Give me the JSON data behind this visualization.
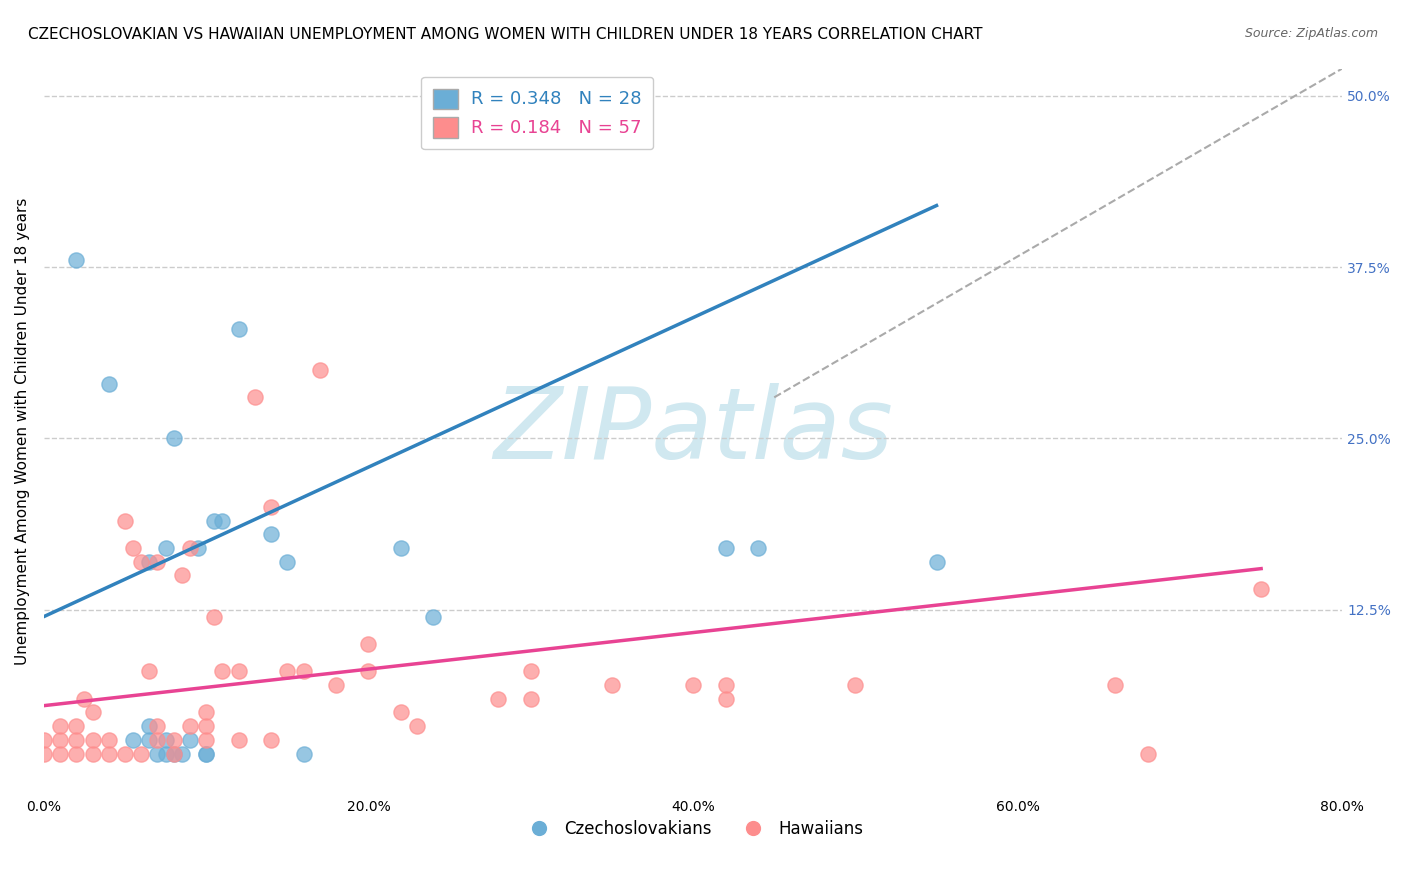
{
  "title": "CZECHOSLOVAKIAN VS HAWAIIAN UNEMPLOYMENT AMONG WOMEN WITH CHILDREN UNDER 18 YEARS CORRELATION CHART",
  "source": "Source: ZipAtlas.com",
  "xlabel": "",
  "ylabel": "Unemployment Among Women with Children Under 18 years",
  "xlim": [
    0.0,
    0.8
  ],
  "ylim": [
    -0.01,
    0.52
  ],
  "xtick_labels": [
    "0.0%",
    "20.0%",
    "40.0%",
    "60.0%",
    "80.0%"
  ],
  "xtick_vals": [
    0.0,
    0.2,
    0.4,
    0.6,
    0.8
  ],
  "ytick_right_labels": [
    "12.5%",
    "25.0%",
    "37.5%",
    "50.0%"
  ],
  "ytick_right_vals": [
    0.125,
    0.25,
    0.375,
    0.5
  ],
  "legend_blue_text": "R = 0.348   N = 28",
  "legend_pink_text": "R = 0.184   N = 57",
  "legend_label_blue": "Czechoslovakians",
  "legend_label_pink": "Hawaiians",
  "blue_color": "#6baed6",
  "pink_color": "#fd8d8d",
  "blue_line_color": "#3182bd",
  "pink_line_color": "#e84393",
  "blue_scatter_x": [
    0.02,
    0.04,
    0.055,
    0.065,
    0.065,
    0.065,
    0.07,
    0.075,
    0.075,
    0.075,
    0.08,
    0.08,
    0.085,
    0.09,
    0.095,
    0.1,
    0.1,
    0.105,
    0.11,
    0.12,
    0.14,
    0.15,
    0.16,
    0.22,
    0.24,
    0.42,
    0.44,
    0.55
  ],
  "blue_scatter_y": [
    0.38,
    0.29,
    0.03,
    0.03,
    0.04,
    0.16,
    0.02,
    0.02,
    0.03,
    0.17,
    0.02,
    0.25,
    0.02,
    0.03,
    0.17,
    0.02,
    0.02,
    0.19,
    0.19,
    0.33,
    0.18,
    0.16,
    0.02,
    0.17,
    0.12,
    0.17,
    0.17,
    0.16
  ],
  "pink_scatter_x": [
    0.0,
    0.0,
    0.01,
    0.01,
    0.01,
    0.02,
    0.02,
    0.02,
    0.025,
    0.03,
    0.03,
    0.03,
    0.04,
    0.04,
    0.05,
    0.05,
    0.055,
    0.06,
    0.06,
    0.065,
    0.07,
    0.07,
    0.07,
    0.08,
    0.08,
    0.085,
    0.09,
    0.09,
    0.1,
    0.1,
    0.1,
    0.105,
    0.11,
    0.12,
    0.12,
    0.13,
    0.14,
    0.14,
    0.15,
    0.16,
    0.17,
    0.18,
    0.2,
    0.2,
    0.22,
    0.23,
    0.28,
    0.3,
    0.3,
    0.35,
    0.4,
    0.42,
    0.42,
    0.5,
    0.66,
    0.68,
    0.75
  ],
  "pink_scatter_y": [
    0.02,
    0.03,
    0.02,
    0.03,
    0.04,
    0.02,
    0.03,
    0.04,
    0.06,
    0.02,
    0.03,
    0.05,
    0.02,
    0.03,
    0.02,
    0.19,
    0.17,
    0.02,
    0.16,
    0.08,
    0.03,
    0.04,
    0.16,
    0.02,
    0.03,
    0.15,
    0.04,
    0.17,
    0.03,
    0.05,
    0.04,
    0.12,
    0.08,
    0.03,
    0.08,
    0.28,
    0.2,
    0.03,
    0.08,
    0.08,
    0.3,
    0.07,
    0.1,
    0.08,
    0.05,
    0.04,
    0.06,
    0.06,
    0.08,
    0.07,
    0.07,
    0.07,
    0.06,
    0.07,
    0.07,
    0.02,
    0.14
  ],
  "blue_line_x": [
    0.0,
    0.55
  ],
  "blue_line_y": [
    0.12,
    0.42
  ],
  "pink_line_x": [
    0.0,
    0.75
  ],
  "pink_line_y": [
    0.055,
    0.155
  ],
  "diag_line_x": [
    0.45,
    0.8
  ],
  "diag_line_y": [
    0.28,
    0.52
  ],
  "watermark": "ZIPatlas",
  "watermark_color": "#d0e8f0",
  "background_color": "#ffffff",
  "grid_color": "#cccccc",
  "title_fontsize": 11,
  "axis_label_fontsize": 11,
  "tick_fontsize": 10
}
